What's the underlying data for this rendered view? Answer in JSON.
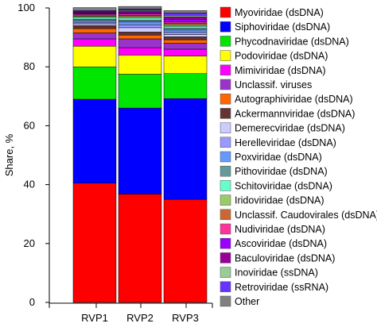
{
  "chart_data": {
    "type": "bar",
    "stacked": true,
    "ylabel": "Share, %",
    "xlabel": "",
    "ylim": [
      0,
      100
    ],
    "yticks": [
      0,
      20,
      40,
      60,
      80,
      100
    ],
    "categories": [
      "RVP1",
      "RVP2",
      "RVP3"
    ],
    "legend_position": "right",
    "series": [
      {
        "name": "Myoviridae (dsDNA)",
        "color": "#ff0000",
        "values": [
          40.5,
          36.8,
          35.0
        ]
      },
      {
        "name": "Siphoviridae (dsDNA)",
        "color": "#0000ff",
        "values": [
          28.5,
          29.2,
          34.2
        ]
      },
      {
        "name": "Phycodnaviridae (dsDNA)",
        "color": "#00e600",
        "values": [
          11.0,
          11.5,
          8.5
        ]
      },
      {
        "name": "Podoviridae (dsDNA)",
        "color": "#ffff00",
        "values": [
          7.0,
          6.5,
          6.0
        ]
      },
      {
        "name": "Mimiviridae (dsDNA)",
        "color": "#ff00ff",
        "values": [
          2.5,
          2.5,
          2.3
        ]
      },
      {
        "name": "Unclassif. viruses",
        "color": "#9933cc",
        "values": [
          2.0,
          3.0,
          2.0
        ]
      },
      {
        "name": "Autographiviridae (dsDNA)",
        "color": "#ff6600",
        "values": [
          1.5,
          1.3,
          1.2
        ]
      },
      {
        "name": "Ackermannviridae (dsDNA)",
        "color": "#663333",
        "values": [
          1.0,
          1.0,
          1.0
        ]
      },
      {
        "name": "Demerecviridae (dsDNA)",
        "color": "#ccccff",
        "values": [
          0.6,
          1.5,
          0.8
        ]
      },
      {
        "name": "Herelleviridae (dsDNA)",
        "color": "#9999ff",
        "values": [
          0.5,
          1.0,
          0.7
        ]
      },
      {
        "name": "Poxviridae (dsDNA)",
        "color": "#6699ff",
        "values": [
          0.6,
          1.0,
          0.8
        ]
      },
      {
        "name": "Pithoviridae (dsDNA)",
        "color": "#669999",
        "values": [
          0.5,
          0.6,
          0.6
        ]
      },
      {
        "name": "Schitoviridae (dsDNA)",
        "color": "#66ffcc",
        "values": [
          0.6,
          0.7,
          0.7
        ]
      },
      {
        "name": "Iridoviridae (dsDNA)",
        "color": "#99cc66",
        "values": [
          0.4,
          0.5,
          0.5
        ]
      },
      {
        "name": "Unclassif. Caudovirales (dsDNA)",
        "color": "#cc6633",
        "values": [
          0.4,
          0.4,
          0.4
        ]
      },
      {
        "name": "Nudiviridae (dsDNA)",
        "color": "#ff3399",
        "values": [
          0.3,
          0.4,
          0.5
        ]
      },
      {
        "name": "Ascoviridae (dsDNA)",
        "color": "#9900ff",
        "values": [
          0.4,
          0.5,
          0.9
        ]
      },
      {
        "name": "Baculoviridae (dsDNA)",
        "color": "#990099",
        "values": [
          0.3,
          0.6,
          0.9
        ]
      },
      {
        "name": "Inoviridae (ssDNA)",
        "color": "#99cc99",
        "values": [
          0.2,
          0.3,
          0.5
        ]
      },
      {
        "name": "Retroviridae (ssRNA)",
        "color": "#6633ff",
        "values": [
          0.3,
          0.4,
          0.8
        ]
      },
      {
        "name": "Other",
        "color": "#808080",
        "values": [
          1.0,
          0.8,
          0.8
        ]
      }
    ]
  }
}
